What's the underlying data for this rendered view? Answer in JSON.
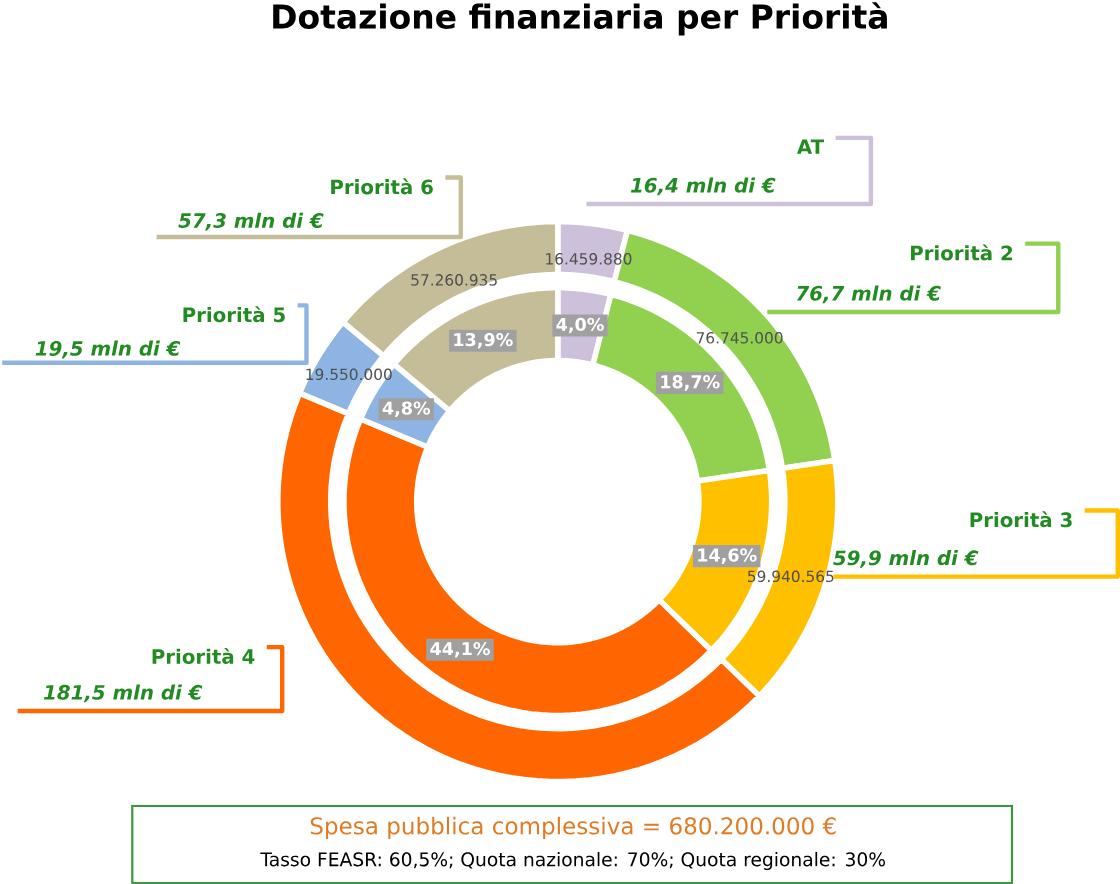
{
  "chart_data": {
    "type": "donut",
    "title": "Dotazione finanziaria per Priorità",
    "categories": [
      "AT",
      "Priorità 2",
      "Priorità 3",
      "Priorità 4",
      "Priorità 5",
      "Priorità 6"
    ],
    "colors": [
      "#ccc0da",
      "#92d050",
      "#ffc000",
      "#ff6600",
      "#8eb4e3",
      "#c4bd97"
    ],
    "series": [
      {
        "values": [
          4.0,
          18.7,
          14.6,
          44.1,
          4.8,
          13.9
        ],
        "value_labels": [
          "4,0%",
          "18,7%",
          "14,6%",
          "44,1%",
          "4,8%",
          "13,9%"
        ]
      },
      {
        "values": [
          16459880,
          76745000,
          59940565,
          181500000,
          19550000,
          57260935
        ],
        "value_labels": [
          "16.459.880",
          "76.745.000",
          "59.940.565",
          null,
          "19.550.000",
          "57.260.935"
        ]
      }
    ],
    "annotations": [
      "16,4 mln di €",
      "76,7 mln di €",
      "59,9 mln di €",
      "181,5 mln di €",
      "19,5 mln di €",
      "57,3 mln di €",
      "Spesa pubblica complessiva = 680.200.000 €",
      "Tasso FEASR: 60,5%; Quota nazionale: 70%; Quota regionale: 30%"
    ]
  }
}
